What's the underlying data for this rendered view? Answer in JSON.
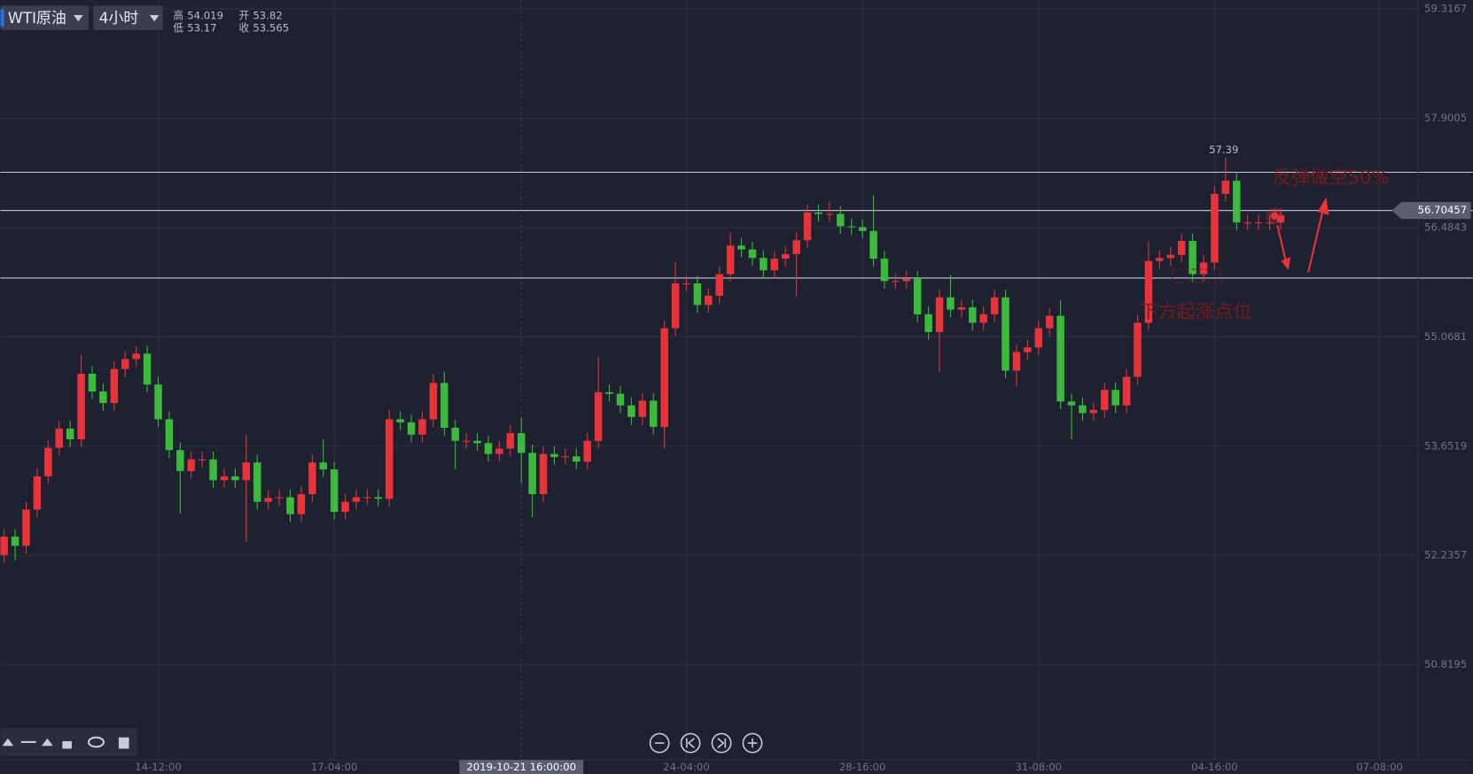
{
  "chart_data": {
    "type": "candlestick",
    "instrument": "WTI原油",
    "interval": "4小时",
    "ohlc_labels": {
      "high": "高",
      "low": "低",
      "open": "开",
      "close": "收"
    },
    "categories": [
      null,
      null,
      null,
      null,
      null,
      null,
      null,
      null,
      null,
      null,
      null,
      null,
      null,
      null,
      "14-12:00",
      null,
      null,
      null,
      null,
      null,
      null,
      null,
      null,
      null,
      null,
      null,
      null,
      null,
      null,
      null,
      "17-04:00",
      null,
      null,
      null,
      null,
      null,
      null,
      null,
      null,
      null,
      null,
      null,
      null,
      null,
      null,
      null,
      null,
      "2019-10-21 16:00:00",
      null,
      null,
      null,
      null,
      null,
      null,
      null,
      null,
      null,
      null,
      null,
      null,
      null,
      null,
      "24-04:00",
      null,
      null,
      null,
      null,
      null,
      null,
      null,
      null,
      null,
      null,
      null,
      null,
      null,
      null,
      null,
      "28-16:00",
      null,
      null,
      null,
      null,
      null,
      null,
      null,
      null,
      null,
      null,
      null,
      null,
      null,
      null,
      null,
      "31-08:00",
      null,
      null,
      null,
      null,
      null,
      null,
      null,
      null,
      null,
      null,
      null,
      null,
      null,
      null,
      null,
      "04-16:00",
      null,
      null,
      null,
      null,
      null,
      null,
      null,
      null,
      null,
      null,
      null,
      null,
      null,
      null,
      "07-08:00"
    ],
    "open": [
      52.24,
      52.48,
      52.36,
      52.83,
      53.26,
      53.63,
      53.88,
      53.74,
      54.59,
      54.36,
      54.21,
      54.65,
      54.78,
      54.85,
      54.45,
      54.0,
      53.6,
      53.33,
      53.48,
      53.48,
      53.21,
      53.26,
      53.21,
      53.44,
      52.93,
      52.98,
      52.99,
      52.77,
      53.03,
      53.44,
      53.35,
      52.8,
      52.93,
      52.99,
      52.99,
      52.97,
      54.0,
      53.96,
      53.8,
      54.0,
      54.47,
      53.89,
      53.72,
      53.72,
      53.69,
      53.55,
      53.62,
      53.82,
      53.565,
      53.03,
      53.55,
      53.51,
      53.52,
      53.45,
      53.72,
      54.35,
      54.33,
      54.18,
      54.03,
      54.24,
      53.9,
      55.18,
      55.76,
      55.76,
      55.48,
      55.6,
      55.88,
      56.25,
      56.2,
      56.09,
      55.93,
      56.08,
      56.14,
      56.32,
      56.68,
      56.66,
      56.66,
      56.5,
      56.49,
      56.44,
      56.08,
      55.79,
      55.79,
      55.82,
      55.36,
      55.13,
      55.58,
      55.42,
      55.45,
      55.25,
      55.36,
      55.58,
      54.63,
      54.87,
      54.93,
      55.18,
      55.34,
      54.23,
      54.18,
      54.08,
      54.12,
      54.38,
      54.18,
      54.55,
      55.25,
      56.05,
      56.09,
      56.13,
      56.31,
      55.88,
      56.03,
      56.92,
      57.09,
      56.55,
      56.55,
      56.55,
      56.55,
      null,
      null,
      null,
      null,
      null,
      null,
      null,
      null,
      null
    ],
    "high": [
      52.58,
      52.58,
      52.93,
      53.36,
      53.73,
      53.98,
      53.98,
      54.83,
      54.69,
      54.46,
      54.75,
      54.88,
      54.95,
      54.95,
      54.55,
      54.1,
      53.7,
      53.58,
      53.58,
      53.58,
      53.36,
      53.36,
      53.8,
      53.54,
      53.08,
      53.09,
      53.09,
      53.13,
      53.54,
      53.74,
      53.45,
      53.03,
      53.09,
      53.09,
      53.09,
      54.12,
      54.1,
      54.06,
      54.1,
      54.59,
      54.62,
      53.99,
      53.82,
      53.82,
      53.79,
      53.72,
      53.92,
      54.019,
      53.67,
      53.65,
      53.65,
      53.62,
      53.62,
      53.82,
      54.81,
      54.45,
      54.43,
      54.28,
      54.34,
      54.34,
      55.28,
      56.03,
      55.86,
      55.86,
      55.7,
      55.98,
      56.42,
      56.35,
      56.3,
      56.19,
      56.18,
      56.24,
      56.42,
      56.78,
      56.78,
      56.82,
      56.76,
      56.6,
      56.59,
      56.9,
      56.18,
      55.89,
      55.92,
      55.92,
      55.46,
      55.68,
      55.87,
      55.55,
      55.55,
      55.46,
      55.68,
      55.68,
      54.97,
      55.03,
      55.28,
      55.44,
      55.54,
      54.33,
      54.28,
      54.22,
      54.48,
      54.48,
      54.65,
      55.35,
      56.3,
      56.19,
      56.23,
      56.41,
      56.41,
      56.13,
      57.02,
      57.39,
      57.19,
      56.65,
      56.65,
      56.65,
      56.74,
      null,
      null,
      null,
      null,
      null,
      null,
      null,
      null,
      null
    ],
    "low": [
      52.14,
      52.17,
      52.26,
      52.73,
      53.16,
      53.53,
      53.64,
      53.64,
      54.26,
      54.11,
      54.11,
      54.55,
      54.68,
      54.35,
      53.9,
      53.5,
      52.78,
      53.23,
      53.38,
      53.11,
      53.11,
      53.11,
      52.41,
      52.83,
      52.83,
      52.88,
      52.67,
      52.67,
      52.93,
      53.25,
      52.7,
      52.7,
      52.83,
      52.89,
      52.87,
      52.87,
      53.86,
      53.7,
      53.7,
      53.9,
      53.79,
      53.35,
      53.62,
      53.59,
      53.45,
      53.45,
      53.52,
      53.17,
      52.73,
      52.93,
      53.41,
      53.41,
      53.35,
      53.35,
      53.62,
      54.23,
      54.08,
      53.93,
      53.93,
      53.8,
      53.62,
      55.08,
      55.66,
      55.38,
      55.38,
      55.5,
      55.78,
      56.1,
      55.99,
      55.83,
      55.83,
      55.98,
      55.59,
      56.22,
      56.56,
      56.56,
      56.4,
      56.39,
      56.34,
      55.98,
      55.69,
      55.69,
      55.69,
      55.26,
      55.03,
      54.61,
      55.32,
      55.32,
      55.15,
      55.15,
      55.26,
      54.53,
      54.42,
      54.77,
      54.83,
      55.08,
      54.13,
      53.74,
      53.98,
      53.98,
      54.02,
      54.08,
      54.08,
      54.45,
      55.15,
      55.95,
      55.99,
      56.03,
      55.78,
      55.78,
      55.93,
      56.82,
      56.45,
      56.45,
      56.45,
      56.45,
      56.45,
      null,
      null,
      null,
      null,
      null,
      null,
      null,
      null,
      null
    ],
    "close": [
      52.48,
      52.36,
      52.83,
      53.26,
      53.63,
      53.88,
      53.74,
      54.59,
      54.36,
      54.21,
      54.65,
      54.78,
      54.85,
      54.45,
      54.0,
      53.6,
      53.33,
      53.48,
      53.48,
      53.21,
      53.26,
      53.21,
      53.44,
      52.93,
      52.98,
      52.99,
      52.77,
      53.03,
      53.44,
      53.35,
      52.8,
      52.93,
      52.99,
      52.99,
      52.97,
      54.0,
      53.96,
      53.8,
      54.0,
      54.47,
      53.89,
      53.72,
      53.72,
      53.69,
      53.55,
      53.62,
      53.82,
      53.565,
      53.03,
      53.55,
      53.51,
      53.52,
      53.45,
      53.72,
      54.35,
      54.33,
      54.18,
      54.03,
      54.24,
      53.9,
      55.18,
      55.76,
      55.76,
      55.48,
      55.6,
      55.88,
      56.25,
      56.2,
      56.09,
      55.93,
      56.08,
      56.14,
      56.32,
      56.68,
      56.66,
      56.66,
      56.5,
      56.49,
      56.44,
      56.08,
      55.79,
      55.79,
      55.82,
      55.36,
      55.13,
      55.58,
      55.42,
      55.45,
      55.25,
      55.36,
      55.58,
      54.63,
      54.87,
      54.93,
      55.18,
      55.34,
      54.23,
      54.18,
      54.08,
      54.12,
      54.38,
      54.18,
      54.55,
      55.25,
      56.05,
      56.09,
      56.13,
      56.31,
      55.88,
      56.03,
      56.92,
      57.09,
      56.55,
      56.55,
      56.55,
      56.55,
      56.64,
      null,
      null,
      null,
      null,
      null,
      null,
      null,
      null,
      null
    ],
    "up_color": "#e8333a",
    "down_color": "#3cba3c",
    "crosshair_index": 47,
    "max_marker_index": 111,
    "ylim": [
      49.586,
      59.432
    ],
    "yticks": [
      59.3167,
      57.9005,
      56.4843,
      55.0681,
      53.6519,
      52.2357,
      50.8195
    ],
    "grid": true,
    "levels": [
      57.2,
      56.70457,
      55.83
    ],
    "current_level_index": 1,
    "annotations": [
      "反弹做空50%",
      "下方起涨点位"
    ]
  }
}
